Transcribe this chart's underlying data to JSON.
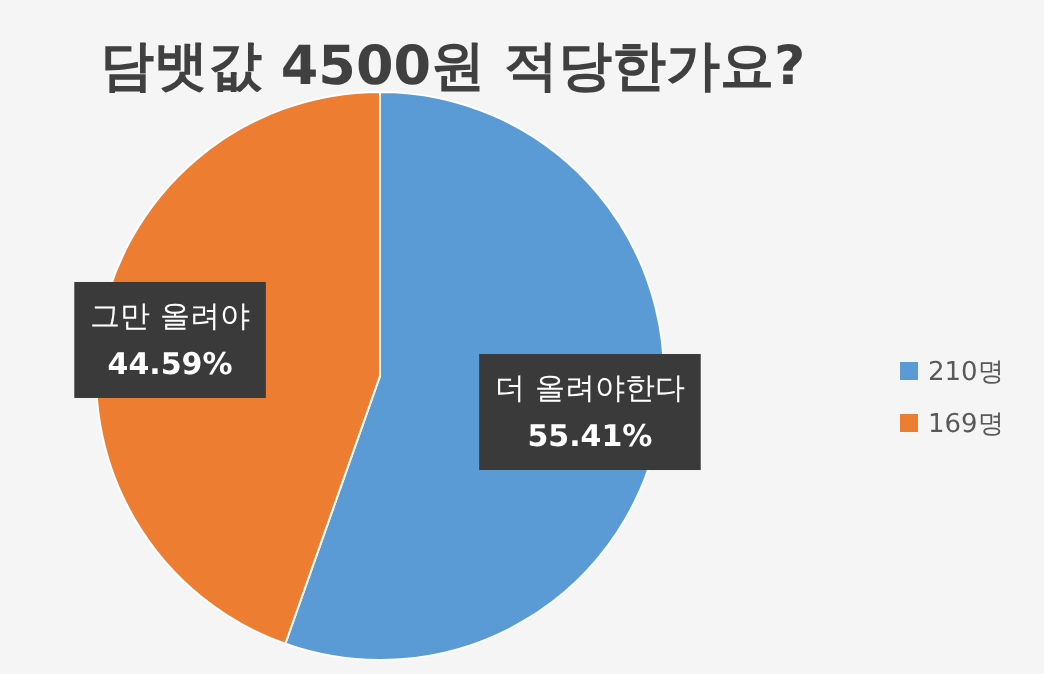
{
  "chart_data": {
    "type": "pie",
    "title": "담뱃값 4500원 적당한가요?",
    "categories": [
      "210명",
      "169명"
    ],
    "values": [
      210,
      169
    ],
    "colors": [
      "#5b9bd5",
      "#ed7d31"
    ],
    "value_labels": [
      "더 올려야한다\n55.41%",
      "그만 올려야\n44.59%"
    ],
    "legend": "right"
  }
}
